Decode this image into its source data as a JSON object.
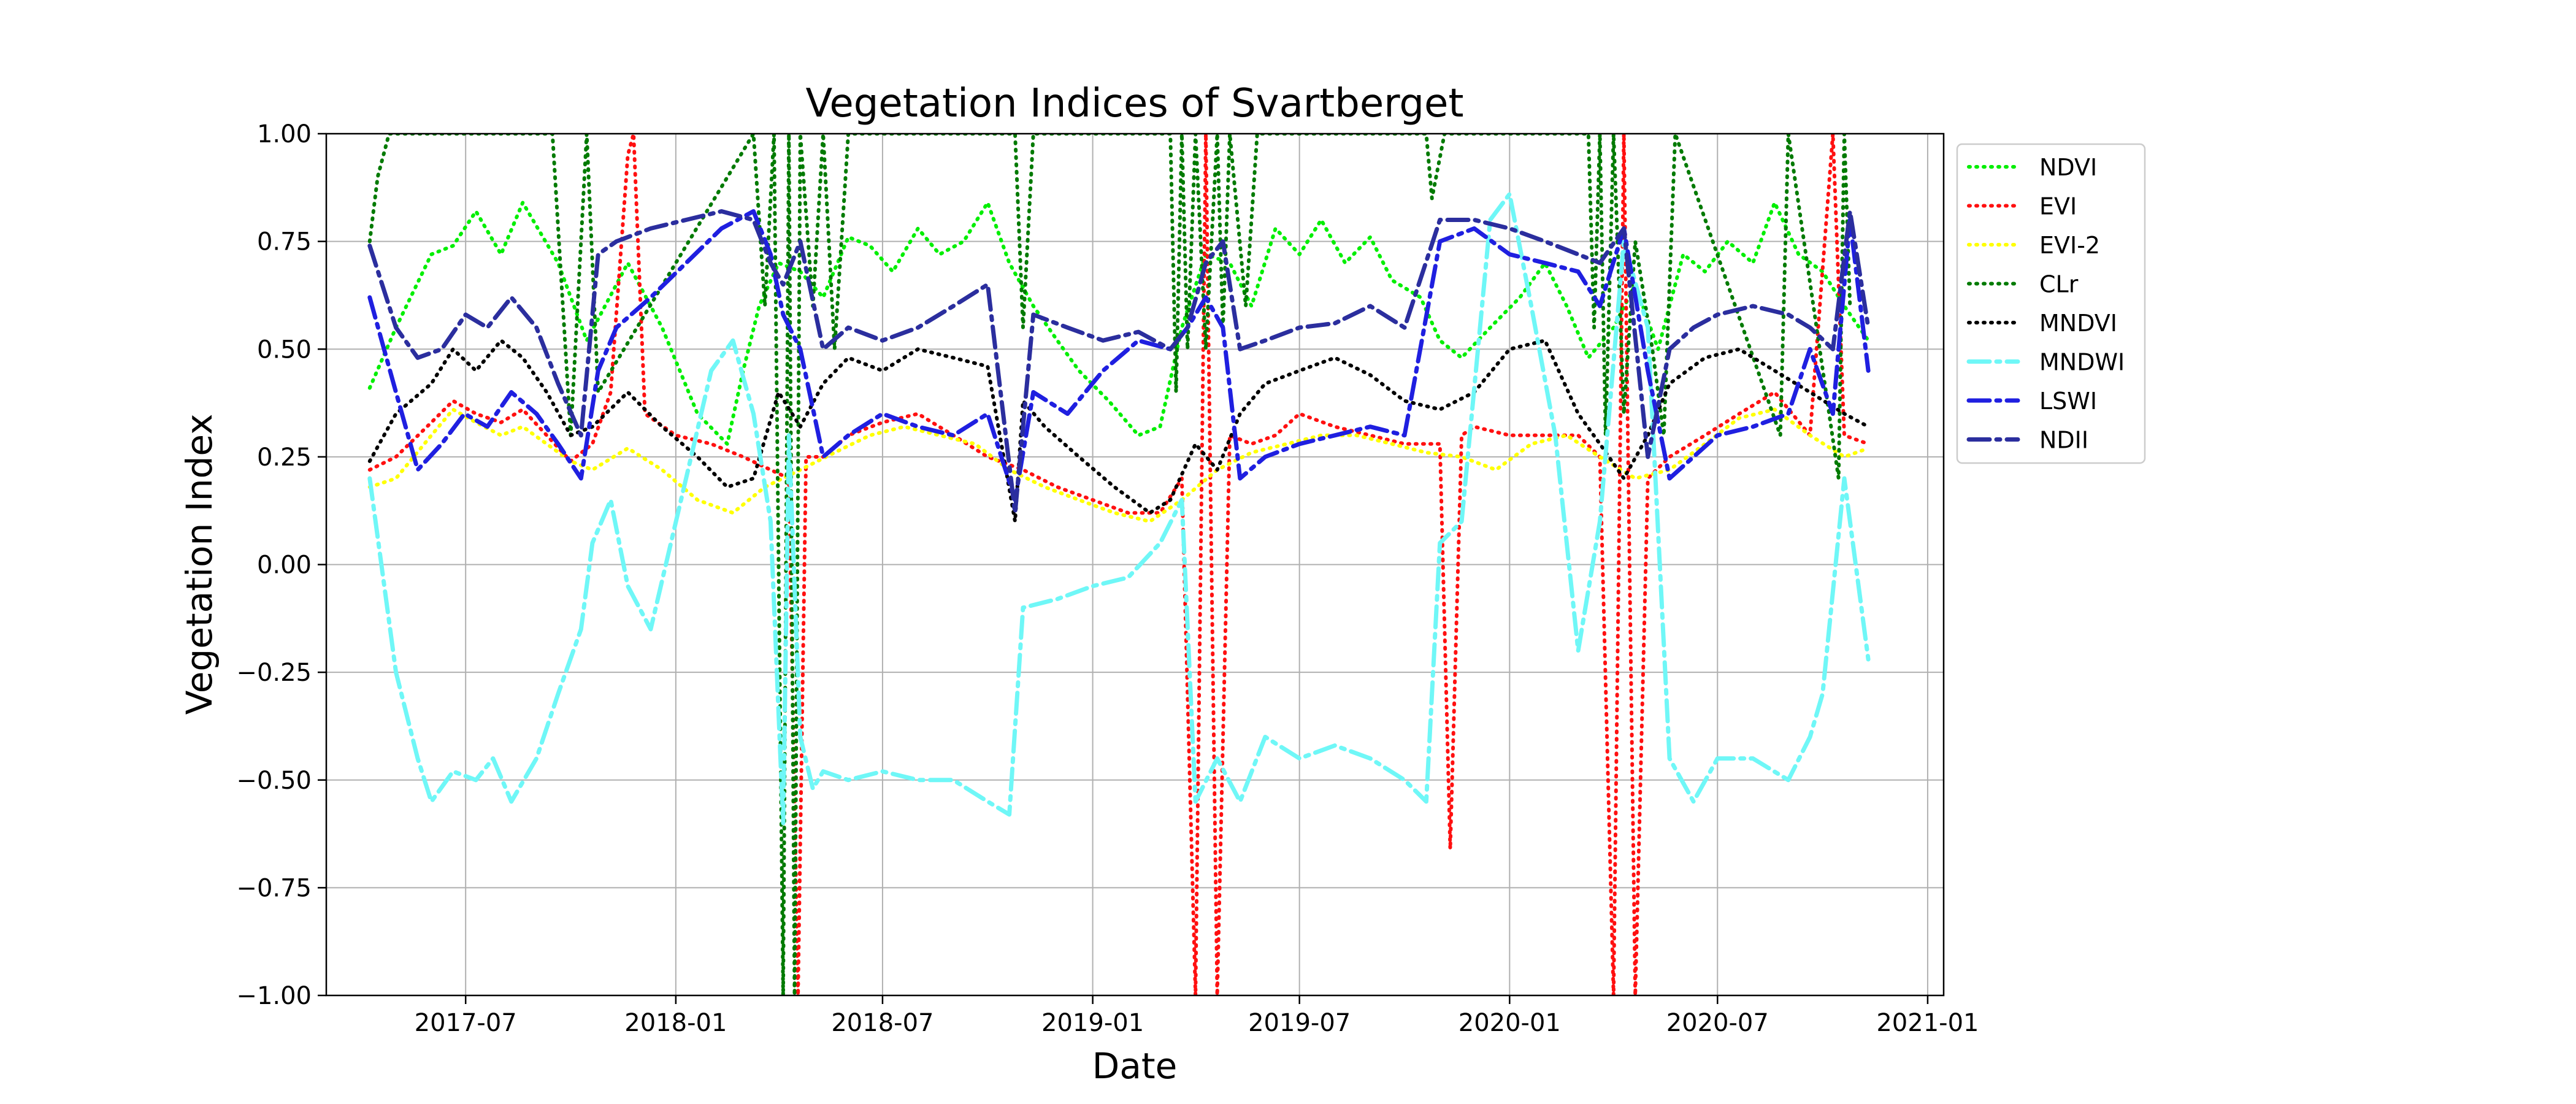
{
  "chart_data": {
    "type": "line",
    "title": "Vegetation Indices of Svartberget",
    "xlabel": "Date",
    "ylabel": "Vegetation Index",
    "x_range": [
      "2017-03-01",
      "2021-01-15"
    ],
    "ylim": [
      -1.0,
      1.0
    ],
    "grid": true,
    "legend_position": "outside-right",
    "x_ticks": [
      "2017-07",
      "2018-01",
      "2018-07",
      "2019-01",
      "2019-07",
      "2020-01",
      "2020-07",
      "2021-01"
    ],
    "y_ticks": [
      1.0,
      0.75,
      0.5,
      0.25,
      0.0,
      -0.25,
      -0.5,
      -0.75,
      -1.0
    ],
    "y_tick_labels": [
      "1.00",
      "0.75",
      "0.50",
      "0.25",
      "0.00",
      "−0.25",
      "−0.50",
      "−0.75",
      "−1.00"
    ],
    "series": [
      {
        "name": "NDVI",
        "color": "#00ee00",
        "dash": "dot",
        "x": [
          "2017-04-08",
          "2017-05-01",
          "2017-06-01",
          "2017-06-20",
          "2017-07-10",
          "2017-08-01",
          "2017-08-20",
          "2017-09-20",
          "2017-10-15",
          "2017-11-20",
          "2017-12-20",
          "2018-01-20",
          "2018-02-15",
          "2018-03-01",
          "2018-03-15",
          "2018-04-01",
          "2018-04-20",
          "2018-05-10",
          "2018-06-01",
          "2018-06-20",
          "2018-07-10",
          "2018-08-01",
          "2018-08-20",
          "2018-09-10",
          "2018-10-01",
          "2018-10-20",
          "2018-11-10",
          "2018-12-01",
          "2018-12-20",
          "2019-01-15",
          "2019-02-10",
          "2019-03-01",
          "2019-03-20",
          "2019-04-10",
          "2019-05-01",
          "2019-05-20",
          "2019-06-10",
          "2019-07-01",
          "2019-07-20",
          "2019-08-10",
          "2019-09-01",
          "2019-09-20",
          "2019-10-15",
          "2019-11-01",
          "2019-11-20",
          "2019-12-15",
          "2020-01-10",
          "2020-02-01",
          "2020-02-20",
          "2020-03-10",
          "2020-04-01",
          "2020-04-20",
          "2020-05-10",
          "2020-06-01",
          "2020-06-20",
          "2020-07-10",
          "2020-08-01",
          "2020-08-20",
          "2020-09-10",
          "2020-10-01",
          "2020-10-20",
          "2020-11-10"
        ],
        "y": [
          0.41,
          0.55,
          0.72,
          0.74,
          0.82,
          0.72,
          0.84,
          0.7,
          0.52,
          0.7,
          0.55,
          0.35,
          0.28,
          0.45,
          0.6,
          0.7,
          0.68,
          0.62,
          0.76,
          0.74,
          0.68,
          0.78,
          0.72,
          0.75,
          0.84,
          0.7,
          0.6,
          0.52,
          0.45,
          0.38,
          0.3,
          0.32,
          0.55,
          0.72,
          0.7,
          0.6,
          0.78,
          0.72,
          0.8,
          0.7,
          0.76,
          0.66,
          0.62,
          0.52,
          0.48,
          0.55,
          0.62,
          0.7,
          0.6,
          0.48,
          0.55,
          0.65,
          0.5,
          0.72,
          0.68,
          0.75,
          0.7,
          0.84,
          0.72,
          0.68,
          0.6,
          0.52
        ]
      },
      {
        "name": "EVI",
        "color": "#ff1010",
        "dash": "dot",
        "x": [
          "2017-04-08",
          "2017-05-01",
          "2017-06-01",
          "2017-06-20",
          "2017-07-10",
          "2017-08-01",
          "2017-08-20",
          "2017-09-10",
          "2017-10-01",
          "2017-10-20",
          "2017-11-05",
          "2017-11-20",
          "2017-11-25",
          "2017-12-05",
          "2018-01-01",
          "2018-02-01",
          "2018-03-01",
          "2018-03-25",
          "2018-04-10",
          "2018-04-18",
          "2018-04-25",
          "2018-05-10",
          "2018-06-01",
          "2018-07-01",
          "2018-08-01",
          "2018-09-01",
          "2018-10-01",
          "2018-11-01",
          "2018-12-01",
          "2019-01-01",
          "2019-02-01",
          "2019-03-01",
          "2019-03-20",
          "2019-04-01",
          "2019-04-10",
          "2019-04-20",
          "2019-05-01",
          "2019-05-20",
          "2019-06-10",
          "2019-07-01",
          "2019-08-01",
          "2019-09-01",
          "2019-10-01",
          "2019-11-01",
          "2019-11-10",
          "2019-11-20",
          "2019-12-01",
          "2020-01-01",
          "2020-02-01",
          "2020-03-01",
          "2020-03-20",
          "2020-04-01",
          "2020-04-10",
          "2020-04-20",
          "2020-05-01",
          "2020-05-20",
          "2020-06-20",
          "2020-07-20",
          "2020-08-20",
          "2020-09-20",
          "2020-10-10",
          "2020-10-20",
          "2020-11-10"
        ],
        "y": [
          0.22,
          0.25,
          0.33,
          0.38,
          0.35,
          0.33,
          0.36,
          0.3,
          0.24,
          0.28,
          0.4,
          0.95,
          1.0,
          0.35,
          0.3,
          0.28,
          0.25,
          0.22,
          0.2,
          -1.0,
          0.25,
          0.25,
          0.3,
          0.33,
          0.35,
          0.3,
          0.25,
          0.22,
          0.18,
          0.15,
          0.12,
          0.12,
          0.2,
          -1.0,
          1.0,
          -1.0,
          0.3,
          0.28,
          0.3,
          0.35,
          0.32,
          0.3,
          0.28,
          0.28,
          -0.66,
          0.3,
          0.32,
          0.3,
          0.3,
          0.3,
          0.25,
          -1.0,
          1.0,
          -1.0,
          0.2,
          0.25,
          0.3,
          0.35,
          0.4,
          0.3,
          1.0,
          0.3,
          0.28
        ]
      },
      {
        "name": "EVI-2",
        "color": "#ffff00",
        "dash": "dot",
        "x": [
          "2017-04-08",
          "2017-05-01",
          "2017-06-01",
          "2017-06-20",
          "2017-07-10",
          "2017-08-01",
          "2017-08-20",
          "2017-09-10",
          "2017-10-01",
          "2017-10-20",
          "2017-11-20",
          "2017-12-20",
          "2018-01-20",
          "2018-02-20",
          "2018-03-20",
          "2018-04-20",
          "2018-05-20",
          "2018-06-20",
          "2018-07-20",
          "2018-08-20",
          "2018-09-20",
          "2018-10-20",
          "2018-11-20",
          "2018-12-20",
          "2019-01-20",
          "2019-02-20",
          "2019-03-20",
          "2019-04-20",
          "2019-05-20",
          "2019-06-20",
          "2019-07-20",
          "2019-08-20",
          "2019-09-20",
          "2019-10-20",
          "2019-11-20",
          "2019-12-20",
          "2020-01-20",
          "2020-02-20",
          "2020-03-20",
          "2020-04-20",
          "2020-05-20",
          "2020-06-20",
          "2020-07-20",
          "2020-08-20",
          "2020-09-20",
          "2020-10-20",
          "2020-11-10"
        ],
        "y": [
          0.18,
          0.2,
          0.3,
          0.36,
          0.33,
          0.3,
          0.32,
          0.28,
          0.24,
          0.22,
          0.27,
          0.22,
          0.15,
          0.12,
          0.18,
          0.22,
          0.26,
          0.3,
          0.32,
          0.3,
          0.28,
          0.22,
          0.18,
          0.15,
          0.12,
          0.1,
          0.15,
          0.22,
          0.26,
          0.28,
          0.3,
          0.3,
          0.28,
          0.26,
          0.25,
          0.22,
          0.28,
          0.3,
          0.25,
          0.2,
          0.22,
          0.28,
          0.34,
          0.36,
          0.3,
          0.25,
          0.27
        ]
      },
      {
        "name": "CLr",
        "color": "#007a00",
        "dash": "dot",
        "x": [
          "2017-04-08",
          "2017-04-15",
          "2017-04-25",
          "2017-09-15",
          "2017-10-01",
          "2017-10-15",
          "2017-10-25",
          "2018-03-10",
          "2018-03-20",
          "2018-03-28",
          "2018-04-05",
          "2018-04-10",
          "2018-04-15",
          "2018-04-20",
          "2018-05-01",
          "2018-05-10",
          "2018-05-20",
          "2018-06-01",
          "2018-10-25",
          "2018-11-01",
          "2018-11-10",
          "2019-03-10",
          "2019-03-15",
          "2019-03-20",
          "2019-03-25",
          "2019-04-01",
          "2019-04-10",
          "2019-04-20",
          "2019-04-25",
          "2019-05-01",
          "2019-05-15",
          "2019-05-25",
          "2019-10-20",
          "2019-10-25",
          "2019-11-05",
          "2020-03-10",
          "2020-03-15",
          "2020-03-20",
          "2020-03-25",
          "2020-04-01",
          "2020-04-10",
          "2020-04-20",
          "2020-05-05",
          "2020-05-15",
          "2020-05-25",
          "2020-08-25",
          "2020-09-01",
          "2020-10-15",
          "2020-10-20",
          "2020-10-25"
        ],
        "y": [
          0.75,
          0.9,
          1.0,
          1.0,
          0.3,
          1.0,
          0.4,
          1.0,
          0.6,
          1.0,
          -1.0,
          1.0,
          -1.0,
          1.0,
          0.6,
          1.0,
          0.5,
          1.0,
          1.0,
          0.55,
          1.0,
          1.0,
          0.4,
          1.0,
          0.5,
          1.0,
          0.5,
          1.0,
          0.55,
          1.0,
          0.6,
          1.0,
          1.0,
          0.85,
          1.0,
          1.0,
          0.55,
          1.0,
          0.3,
          1.0,
          0.35,
          0.75,
          0.5,
          0.3,
          1.0,
          0.3,
          1.0,
          0.2,
          1.0,
          0.6
        ]
      },
      {
        "name": "MNDVI",
        "color": "#000000",
        "dash": "dot",
        "x": [
          "2017-04-08",
          "2017-05-01",
          "2017-06-01",
          "2017-06-20",
          "2017-07-10",
          "2017-08-01",
          "2017-08-20",
          "2017-09-10",
          "2017-10-01",
          "2017-10-20",
          "2017-11-20",
          "2017-12-20",
          "2018-01-20",
          "2018-02-15",
          "2018-03-10",
          "2018-04-01",
          "2018-04-20",
          "2018-05-10",
          "2018-06-01",
          "2018-07-01",
          "2018-08-01",
          "2018-09-01",
          "2018-10-01",
          "2018-10-25",
          "2018-11-01",
          "2018-11-20",
          "2018-12-20",
          "2019-01-20",
          "2019-02-20",
          "2019-03-10",
          "2019-04-01",
          "2019-04-20",
          "2019-05-10",
          "2019-06-01",
          "2019-07-01",
          "2019-08-01",
          "2019-09-01",
          "2019-10-01",
          "2019-11-01",
          "2019-12-01",
          "2020-01-01",
          "2020-02-01",
          "2020-03-01",
          "2020-03-20",
          "2020-04-10",
          "2020-05-01",
          "2020-05-20",
          "2020-06-20",
          "2020-07-20",
          "2020-08-20",
          "2020-09-20",
          "2020-10-20",
          "2020-11-10"
        ],
        "y": [
          0.24,
          0.35,
          0.42,
          0.5,
          0.45,
          0.52,
          0.48,
          0.4,
          0.3,
          0.32,
          0.4,
          0.32,
          0.25,
          0.18,
          0.2,
          0.4,
          0.32,
          0.42,
          0.48,
          0.45,
          0.5,
          0.48,
          0.46,
          0.1,
          0.38,
          0.32,
          0.25,
          0.18,
          0.12,
          0.15,
          0.28,
          0.22,
          0.35,
          0.42,
          0.45,
          0.48,
          0.44,
          0.38,
          0.36,
          0.4,
          0.5,
          0.52,
          0.35,
          0.28,
          0.2,
          0.3,
          0.42,
          0.48,
          0.5,
          0.45,
          0.4,
          0.35,
          0.32
        ]
      },
      {
        "name": "MNDWI",
        "color": "#6ff7f7",
        "dash": "dashdot",
        "x": [
          "2017-04-08",
          "2017-05-01",
          "2017-05-20",
          "2017-06-01",
          "2017-06-20",
          "2017-07-10",
          "2017-07-25",
          "2017-08-10",
          "2017-09-01",
          "2017-09-20",
          "2017-10-10",
          "2017-10-20",
          "2017-11-05",
          "2017-11-20",
          "2017-12-10",
          "2018-01-10",
          "2018-02-01",
          "2018-02-20",
          "2018-03-10",
          "2018-03-25",
          "2018-04-05",
          "2018-04-10",
          "2018-04-20",
          "2018-05-01",
          "2018-05-10",
          "2018-06-01",
          "2018-07-01",
          "2018-08-01",
          "2018-09-01",
          "2018-10-01",
          "2018-10-20",
          "2018-11-01",
          "2018-12-01",
          "2019-01-01",
          "2019-02-01",
          "2019-03-01",
          "2019-03-20",
          "2019-04-01",
          "2019-04-20",
          "2019-05-10",
          "2019-06-01",
          "2019-07-01",
          "2019-08-01",
          "2019-09-01",
          "2019-10-01",
          "2019-10-20",
          "2019-11-01",
          "2019-11-20",
          "2019-12-15",
          "2020-01-01",
          "2020-01-20",
          "2020-02-10",
          "2020-03-01",
          "2020-03-20",
          "2020-04-10",
          "2020-05-01",
          "2020-05-20",
          "2020-06-10",
          "2020-07-01",
          "2020-08-01",
          "2020-09-01",
          "2020-09-20",
          "2020-10-01",
          "2020-10-20",
          "2020-11-10"
        ],
        "y": [
          0.2,
          -0.25,
          -0.45,
          -0.55,
          -0.48,
          -0.5,
          -0.45,
          -0.55,
          -0.45,
          -0.3,
          -0.15,
          0.05,
          0.15,
          -0.05,
          -0.15,
          0.2,
          0.45,
          0.52,
          0.35,
          0.1,
          -0.6,
          0.3,
          -0.4,
          -0.52,
          -0.48,
          -0.5,
          -0.48,
          -0.5,
          -0.5,
          -0.55,
          -0.58,
          -0.1,
          -0.08,
          -0.05,
          -0.03,
          0.05,
          0.15,
          -0.55,
          -0.45,
          -0.55,
          -0.4,
          -0.45,
          -0.42,
          -0.45,
          -0.5,
          -0.55,
          0.05,
          0.1,
          0.8,
          0.86,
          0.6,
          0.3,
          -0.2,
          0.1,
          0.75,
          0.55,
          -0.45,
          -0.55,
          -0.45,
          -0.45,
          -0.5,
          -0.4,
          -0.3,
          0.2,
          -0.22
        ]
      },
      {
        "name": "LSWI",
        "color": "#1f1fe0",
        "dash": "dashdot",
        "x": [
          "2017-04-08",
          "2017-05-01",
          "2017-05-20",
          "2017-06-10",
          "2017-06-30",
          "2017-07-20",
          "2017-08-10",
          "2017-09-01",
          "2017-09-20",
          "2017-10-10",
          "2017-10-25",
          "2017-11-10",
          "2017-12-10",
          "2018-01-10",
          "2018-02-10",
          "2018-03-10",
          "2018-03-25",
          "2018-04-05",
          "2018-04-20",
          "2018-05-10",
          "2018-06-01",
          "2018-07-01",
          "2018-08-01",
          "2018-09-01",
          "2018-10-01",
          "2018-10-25",
          "2018-11-10",
          "2018-12-10",
          "2019-01-10",
          "2019-02-10",
          "2019-03-10",
          "2019-03-25",
          "2019-04-10",
          "2019-04-25",
          "2019-05-10",
          "2019-06-01",
          "2019-07-01",
          "2019-08-01",
          "2019-09-01",
          "2019-10-01",
          "2019-11-01",
          "2019-12-01",
          "2020-01-01",
          "2020-02-01",
          "2020-03-01",
          "2020-03-20",
          "2020-04-10",
          "2020-05-01",
          "2020-05-20",
          "2020-06-10",
          "2020-07-01",
          "2020-08-01",
          "2020-09-01",
          "2020-09-20",
          "2020-10-10",
          "2020-10-25",
          "2020-11-10"
        ],
        "y": [
          0.62,
          0.4,
          0.22,
          0.28,
          0.35,
          0.32,
          0.4,
          0.35,
          0.28,
          0.2,
          0.45,
          0.55,
          0.62,
          0.7,
          0.78,
          0.82,
          0.72,
          0.58,
          0.5,
          0.25,
          0.3,
          0.35,
          0.32,
          0.3,
          0.35,
          0.15,
          0.4,
          0.35,
          0.45,
          0.52,
          0.5,
          0.55,
          0.62,
          0.55,
          0.2,
          0.25,
          0.28,
          0.3,
          0.32,
          0.3,
          0.75,
          0.78,
          0.72,
          0.7,
          0.68,
          0.6,
          0.78,
          0.45,
          0.2,
          0.25,
          0.3,
          0.32,
          0.35,
          0.5,
          0.35,
          0.8,
          0.45
        ]
      },
      {
        "name": "NDII",
        "color": "#2b2e9e",
        "dash": "dashdot",
        "x": [
          "2017-04-08",
          "2017-05-01",
          "2017-05-20",
          "2017-06-10",
          "2017-07-01",
          "2017-07-20",
          "2017-08-10",
          "2017-09-01",
          "2017-09-20",
          "2017-10-10",
          "2017-10-25",
          "2017-11-10",
          "2017-12-10",
          "2018-01-10",
          "2018-02-10",
          "2018-03-10",
          "2018-03-25",
          "2018-04-05",
          "2018-04-20",
          "2018-05-10",
          "2018-06-01",
          "2018-07-01",
          "2018-08-01",
          "2018-09-01",
          "2018-10-01",
          "2018-10-25",
          "2018-11-10",
          "2018-12-10",
          "2019-01-10",
          "2019-02-10",
          "2019-03-10",
          "2019-03-25",
          "2019-04-10",
          "2019-04-25",
          "2019-05-10",
          "2019-06-01",
          "2019-07-01",
          "2019-08-01",
          "2019-09-01",
          "2019-10-01",
          "2019-11-01",
          "2019-12-01",
          "2020-01-01",
          "2020-02-01",
          "2020-03-01",
          "2020-03-20",
          "2020-04-10",
          "2020-05-01",
          "2020-05-20",
          "2020-06-10",
          "2020-07-01",
          "2020-08-01",
          "2020-09-01",
          "2020-09-20",
          "2020-10-10",
          "2020-10-25",
          "2020-11-10"
        ],
        "y": [
          0.74,
          0.55,
          0.48,
          0.5,
          0.58,
          0.55,
          0.62,
          0.55,
          0.42,
          0.3,
          0.72,
          0.75,
          0.78,
          0.8,
          0.82,
          0.8,
          0.7,
          0.65,
          0.75,
          0.5,
          0.55,
          0.52,
          0.55,
          0.6,
          0.65,
          0.12,
          0.58,
          0.55,
          0.52,
          0.54,
          0.5,
          0.55,
          0.7,
          0.75,
          0.5,
          0.52,
          0.55,
          0.56,
          0.6,
          0.55,
          0.8,
          0.8,
          0.78,
          0.75,
          0.72,
          0.7,
          0.78,
          0.25,
          0.5,
          0.55,
          0.58,
          0.6,
          0.58,
          0.55,
          0.5,
          0.82,
          0.55
        ]
      }
    ]
  }
}
